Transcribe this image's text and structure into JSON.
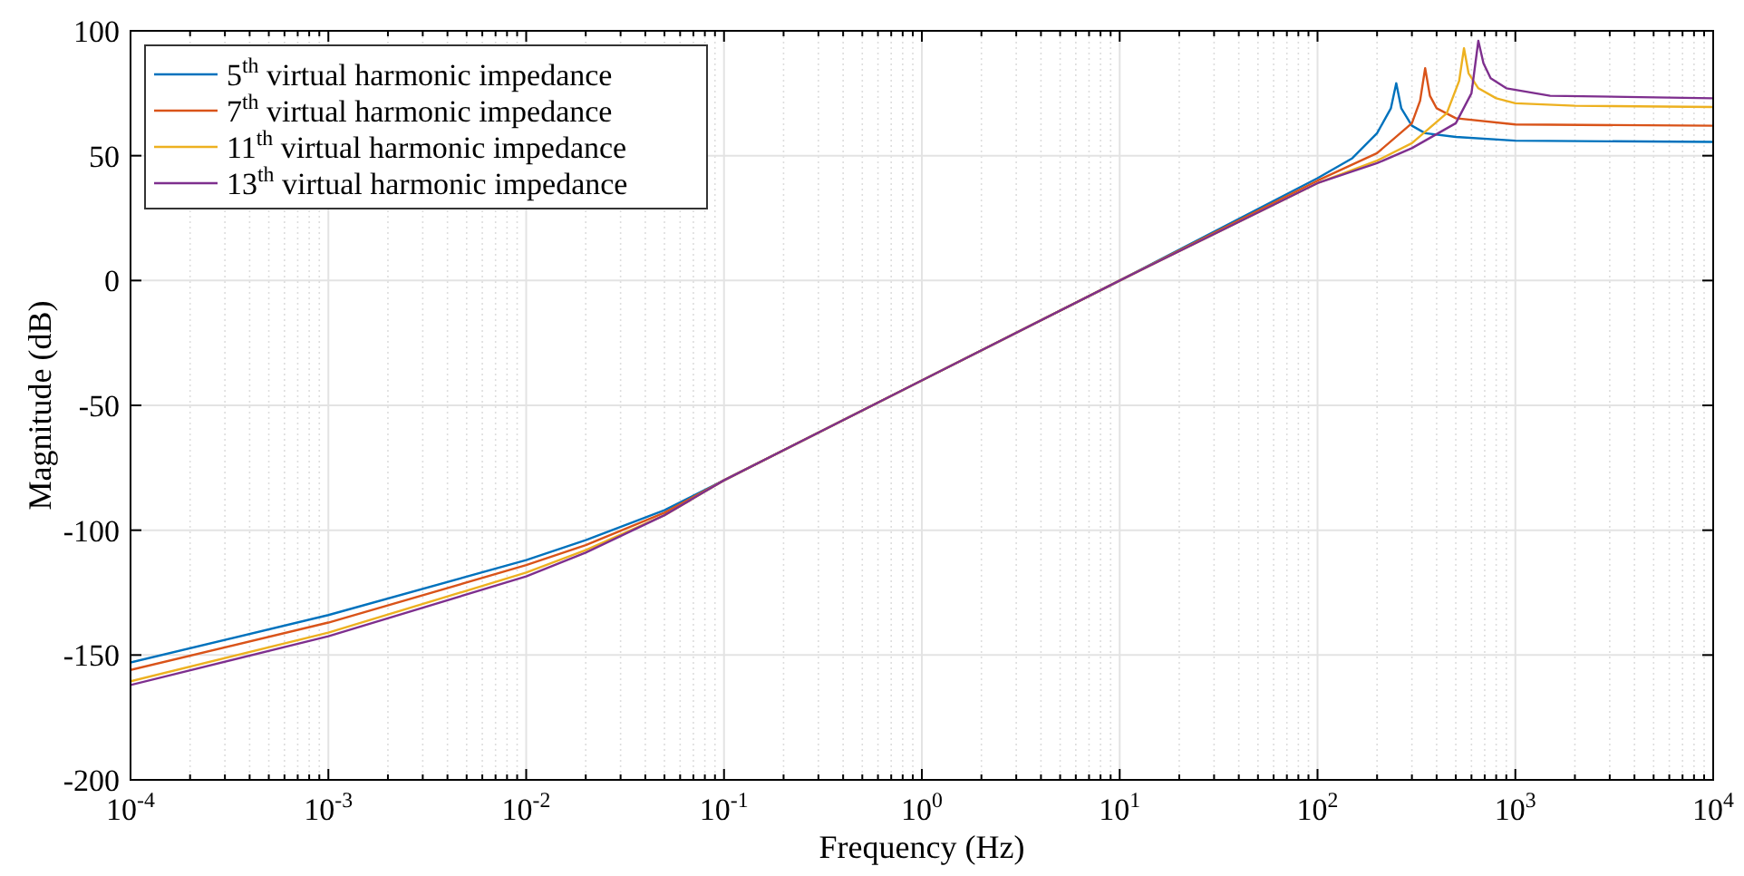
{
  "chart_data": {
    "type": "line",
    "xlabel": "Frequency (Hz)",
    "ylabel": "Magnitude (dB)",
    "log": "x",
    "grid": true,
    "legend": "top left",
    "line_style": "solid",
    "marker": "none",
    "xlim": [
      0.0001,
      10000
    ],
    "xticks": [
      {
        "value": 0.0001,
        "label": "10$^{-4}$"
      },
      {
        "value": 0.001,
        "label": "10$^{-3}$"
      },
      {
        "value": 0.01,
        "label": "10$^{-2}$"
      },
      {
        "value": 0.1,
        "label": "10$^{-1}$"
      },
      {
        "value": 1,
        "label": "10$^{0}$"
      },
      {
        "value": 10,
        "label": "10$^{1}$"
      },
      {
        "value": 100,
        "label": "10$^{2}$"
      },
      {
        "value": 1000,
        "label": "10$^{3}$"
      },
      {
        "value": 10000,
        "label": "10$^{4}$"
      }
    ],
    "ylim": [
      -200,
      100
    ],
    "yticks": [
      -200,
      -150,
      -100,
      -50,
      0,
      50,
      100
    ],
    "series": [
      {
        "name": "5$^{th}$ virtual harmonic impedance",
        "color": "#0072bd",
        "x": [
          0.0001,
          0.001,
          0.01,
          0.02,
          0.05,
          0.1,
          1,
          10,
          100,
          150,
          200,
          235,
          250,
          265,
          300,
          350,
          500,
          1000,
          10000
        ],
        "values": [
          -153,
          -134,
          -112,
          -104,
          -92,
          -80,
          -40,
          0,
          41,
          49,
          59,
          69,
          79,
          69,
          62,
          59,
          57.5,
          56,
          55.5
        ]
      },
      {
        "name": "7$^{th}$ virtual harmonic impedance",
        "color": "#d95319",
        "x": [
          0.0001,
          0.001,
          0.01,
          0.02,
          0.05,
          0.1,
          1,
          10,
          100,
          200,
          300,
          330,
          350,
          370,
          400,
          500,
          1000,
          10000
        ],
        "values": [
          -156,
          -137,
          -114,
          -106,
          -93,
          -80,
          -40,
          0,
          40,
          51,
          63,
          72,
          85,
          74,
          69,
          65,
          62.5,
          62
        ]
      },
      {
        "name": "11$^{th}$ virtual harmonic impedance",
        "color": "#edb120",
        "x": [
          0.0001,
          0.001,
          0.01,
          0.02,
          0.05,
          0.1,
          1,
          10,
          100,
          200,
          300,
          450,
          520,
          550,
          580,
          650,
          800,
          1000,
          2000,
          10000
        ],
        "values": [
          -160.5,
          -141,
          -117,
          -108,
          -94,
          -80,
          -40,
          0,
          39,
          48,
          55,
          67,
          80,
          93,
          83,
          77,
          73,
          71,
          70,
          69.5
        ]
      },
      {
        "name": "13$^{th}$ virtual harmonic impedance",
        "color": "#7e2f8e",
        "x": [
          0.0001,
          0.001,
          0.01,
          0.02,
          0.05,
          0.1,
          1,
          10,
          100,
          200,
          300,
          500,
          600,
          650,
          690,
          750,
          900,
          1500,
          10000
        ],
        "values": [
          -162,
          -142.5,
          -118.5,
          -109,
          -94,
          -80,
          -40,
          0,
          39,
          47,
          53,
          63,
          75,
          96,
          87,
          81,
          77,
          74,
          73
        ]
      }
    ]
  }
}
